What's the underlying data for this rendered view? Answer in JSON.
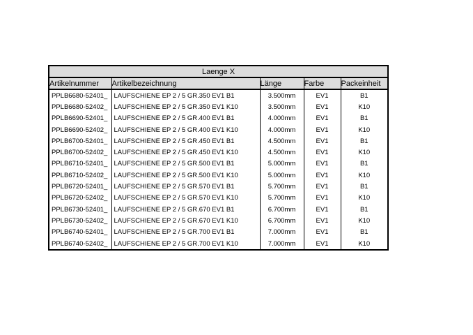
{
  "page": {
    "background": "#ffffff"
  },
  "table": {
    "title": "Laenge X",
    "header_bg": "#dcdcdc",
    "border_color": "#000000",
    "columns": [
      "Artikelnummer",
      "Artikelbezeichnung",
      "Länge",
      "Farbe",
      "Packeinheit"
    ],
    "column_alignments": [
      "left",
      "left",
      "center",
      "center",
      "center"
    ],
    "rows": [
      [
        "PPLB6680-52401_",
        "LAUFSCHIENE EP 2 / 5 GR.350 EV1 B1",
        "3.500mm",
        "EV1",
        "B1"
      ],
      [
        "PPLB6680-52402_",
        "LAUFSCHIENE EP 2 / 5 GR.350 EV1 K10",
        "3.500mm",
        "EV1",
        "K10"
      ],
      [
        "PPLB6690-52401_",
        "LAUFSCHIENE EP 2 / 5 GR.400 EV1 B1",
        "4.000mm",
        "EV1",
        "B1"
      ],
      [
        "PPLB6690-52402_",
        "LAUFSCHIENE EP 2 / 5 GR.400 EV1 K10",
        "4.000mm",
        "EV1",
        "K10"
      ],
      [
        "PPLB6700-52401_",
        "LAUFSCHIENE EP 2 / 5 GR.450 EV1 B1",
        "4.500mm",
        "EV1",
        "B1"
      ],
      [
        "PPLB6700-52402_",
        "LAUFSCHIENE EP 2 / 5 GR.450 EV1 K10",
        "4.500mm",
        "EV1",
        "K10"
      ],
      [
        "PPLB6710-52401_",
        "LAUFSCHIENE EP 2 / 5 GR.500 EV1 B1",
        "5.000mm",
        "EV1",
        "B1"
      ],
      [
        "PPLB6710-52402_",
        "LAUFSCHIENE EP 2 / 5 GR.500 EV1 K10",
        "5.000mm",
        "EV1",
        "K10"
      ],
      [
        "PPLB6720-52401_",
        "LAUFSCHIENE EP 2 / 5 GR.570 EV1 B1",
        "5.700mm",
        "EV1",
        "B1"
      ],
      [
        "PPLB6720-52402_",
        "LAUFSCHIENE EP 2 / 5 GR.570 EV1 K10",
        "5.700mm",
        "EV1",
        "K10"
      ],
      [
        "PPLB6730-52401_",
        "LAUFSCHIENE EP 2 / 5 GR.670 EV1 B1",
        "6.700mm",
        "EV1",
        "B1"
      ],
      [
        "PPLB6730-52402_",
        "LAUFSCHIENE EP 2 / 5 GR.670 EV1 K10",
        "6.700mm",
        "EV1",
        "K10"
      ],
      [
        "PPLB6740-52401_",
        "LAUFSCHIENE EP 2 / 5 GR.700 EV1 B1",
        "7.000mm",
        "EV1",
        "B1"
      ],
      [
        "PPLB6740-52402_",
        "LAUFSCHIENE EP 2 / 5 GR.700 EV1 K10",
        "7.000mm",
        "EV1",
        "K10"
      ]
    ]
  }
}
